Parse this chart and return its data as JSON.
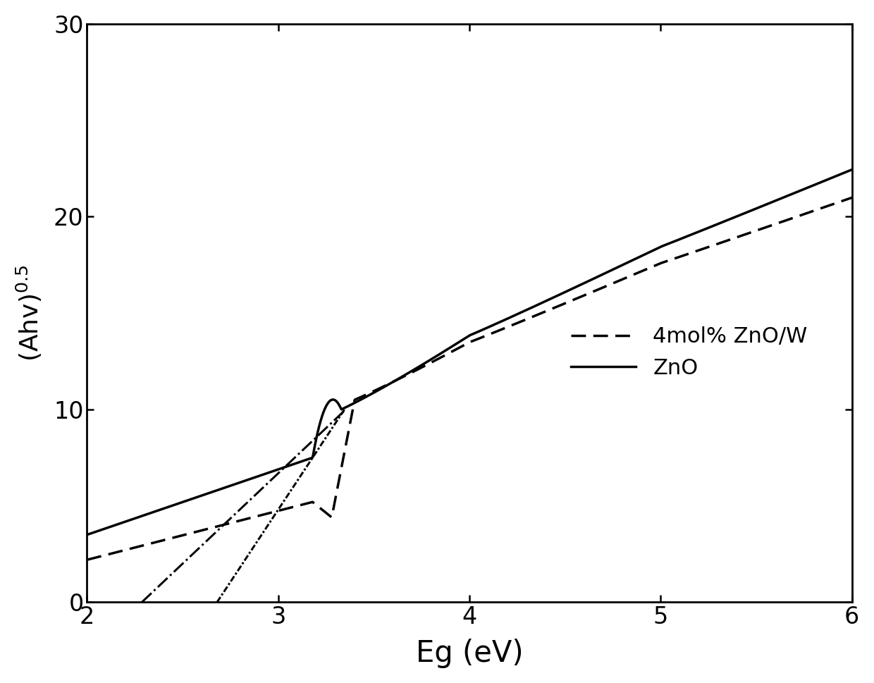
{
  "title": "",
  "xlabel": "Eg (eV)",
  "ylabel": "(Ahv)$^{0.5}$",
  "xlim": [
    2,
    6
  ],
  "ylim": [
    0,
    30
  ],
  "xticks": [
    2,
    3,
    4,
    5,
    6
  ],
  "yticks": [
    0,
    10,
    20,
    30
  ],
  "line_color": "#000000",
  "background_color": "#ffffff",
  "xlabel_fontsize": 30,
  "ylabel_fontsize": 26,
  "tick_fontsize": 24,
  "legend_fontsize": 22,
  "linewidth": 2.5
}
